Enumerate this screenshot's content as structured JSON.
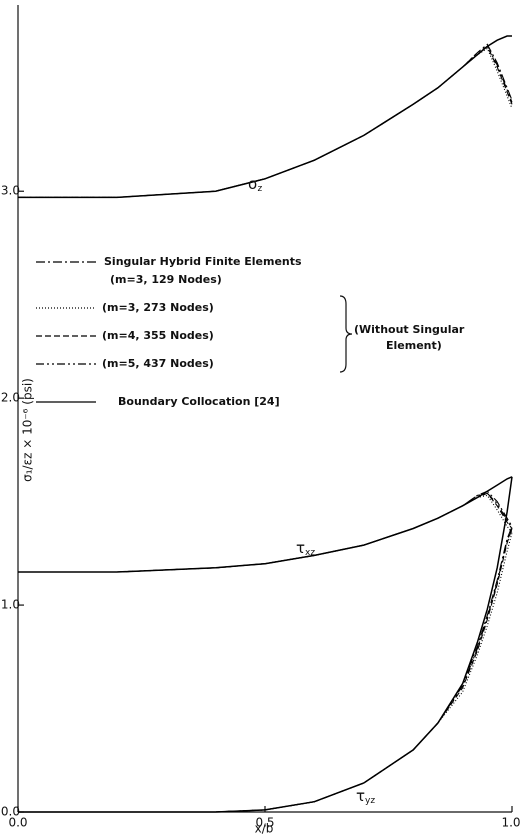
{
  "chart_data": {
    "type": "line",
    "xlabel": "x/b",
    "ylabel": "σ₁/εz × 10⁻⁶  (psi)",
    "x": [
      0,
      0.2,
      0.4,
      0.5,
      0.6,
      0.7,
      0.8,
      0.85,
      0.9,
      0.93,
      0.95,
      0.97,
      0.99,
      1.0
    ],
    "xlim": [
      0,
      1.0
    ],
    "xticks": [
      {
        "value": 0,
        "label": "0.0"
      },
      0.5,
      {
        "value": 1.0,
        "label": "1.0"
      }
    ],
    "ylim": [
      0,
      3.9
    ],
    "yticks": [
      {
        "value": 0,
        "label": "0.0"
      },
      {
        "value": 1.0,
        "label": "1.0"
      },
      {
        "value": 2.0,
        "label": "2.0"
      },
      {
        "value": 3.0,
        "label": "3.0"
      }
    ],
    "curve_labels": [
      {
        "symbol": "σ",
        "sub": "z"
      },
      {
        "symbol": "τ",
        "sub": "xz"
      },
      {
        "symbol": "τ",
        "sub": "yz"
      }
    ],
    "brace_note": [
      "(Without Singular",
      "Element)"
    ],
    "series": [
      {
        "name": [
          "Singular Hybrid Finite Elements",
          "(m=3, 129 Nodes)"
        ],
        "color": "#000",
        "line_style": "dash-dot",
        "values": [
          [
            2.97,
            2.97,
            3.0,
            3.06,
            3.15,
            3.27,
            3.42,
            3.5,
            3.6,
            3.67,
            3.71,
            3.62,
            3.5,
            3.44
          ],
          [
            1.16,
            1.16,
            1.18,
            1.2,
            1.24,
            1.29,
            1.37,
            1.42,
            1.48,
            1.53,
            1.55,
            1.5,
            1.42,
            1.38
          ],
          [
            0,
            0,
            0,
            0.01,
            0.05,
            0.14,
            0.3,
            0.43,
            0.62,
            0.8,
            0.95,
            1.12,
            1.32,
            1.38
          ]
        ]
      },
      {
        "name": "(m=3, 273 Nodes)",
        "color": "#000",
        "line_style": "dotted",
        "values": [
          [
            2.97,
            2.97,
            3.0,
            3.06,
            3.15,
            3.27,
            3.42,
            3.5,
            3.6,
            3.66,
            3.69,
            3.58,
            3.46,
            3.4
          ],
          [
            1.16,
            1.16,
            1.18,
            1.2,
            1.24,
            1.29,
            1.37,
            1.42,
            1.48,
            1.52,
            1.53,
            1.46,
            1.38,
            1.35
          ],
          [
            0,
            0,
            0,
            0.01,
            0.05,
            0.14,
            0.3,
            0.43,
            0.58,
            0.76,
            0.9,
            1.06,
            1.26,
            1.35
          ]
        ]
      },
      {
        "name": "(m=4, 355 Nodes)",
        "color": "#000",
        "line_style": "dashed",
        "values": [
          [
            2.97,
            2.97,
            3.0,
            3.06,
            3.15,
            3.27,
            3.42,
            3.5,
            3.6,
            3.66,
            3.7,
            3.6,
            3.48,
            3.42
          ],
          [
            1.16,
            1.16,
            1.18,
            1.2,
            1.24,
            1.29,
            1.37,
            1.42,
            1.48,
            1.52,
            1.54,
            1.48,
            1.4,
            1.37
          ],
          [
            0,
            0,
            0,
            0.01,
            0.05,
            0.14,
            0.3,
            0.43,
            0.6,
            0.78,
            0.93,
            1.1,
            1.3,
            1.37
          ]
        ]
      },
      {
        "name": "(m=5, 437 Nodes)",
        "color": "#000",
        "line_style": "dash-dot-dot",
        "values": [
          [
            2.97,
            2.97,
            3.0,
            3.06,
            3.15,
            3.27,
            3.42,
            3.5,
            3.6,
            3.67,
            3.7,
            3.61,
            3.49,
            3.43
          ],
          [
            1.16,
            1.16,
            1.18,
            1.2,
            1.24,
            1.29,
            1.37,
            1.42,
            1.48,
            1.53,
            1.54,
            1.49,
            1.41,
            1.37
          ],
          [
            0,
            0,
            0,
            0.01,
            0.05,
            0.14,
            0.3,
            0.43,
            0.61,
            0.79,
            0.94,
            1.11,
            1.31,
            1.37
          ]
        ]
      },
      {
        "name": "Boundary Collocation [24]",
        "color": "#000",
        "line_style": "solid",
        "values": [
          [
            2.97,
            2.97,
            3.0,
            3.06,
            3.15,
            3.27,
            3.42,
            3.5,
            3.6,
            3.66,
            3.7,
            3.73,
            3.75,
            3.75
          ],
          [
            1.16,
            1.16,
            1.18,
            1.2,
            1.24,
            1.29,
            1.37,
            1.42,
            1.48,
            1.52,
            1.55,
            1.58,
            1.61,
            1.62
          ],
          [
            0,
            0,
            0,
            0.01,
            0.05,
            0.14,
            0.3,
            0.43,
            0.62,
            0.82,
            0.98,
            1.18,
            1.45,
            1.62
          ]
        ]
      }
    ]
  }
}
